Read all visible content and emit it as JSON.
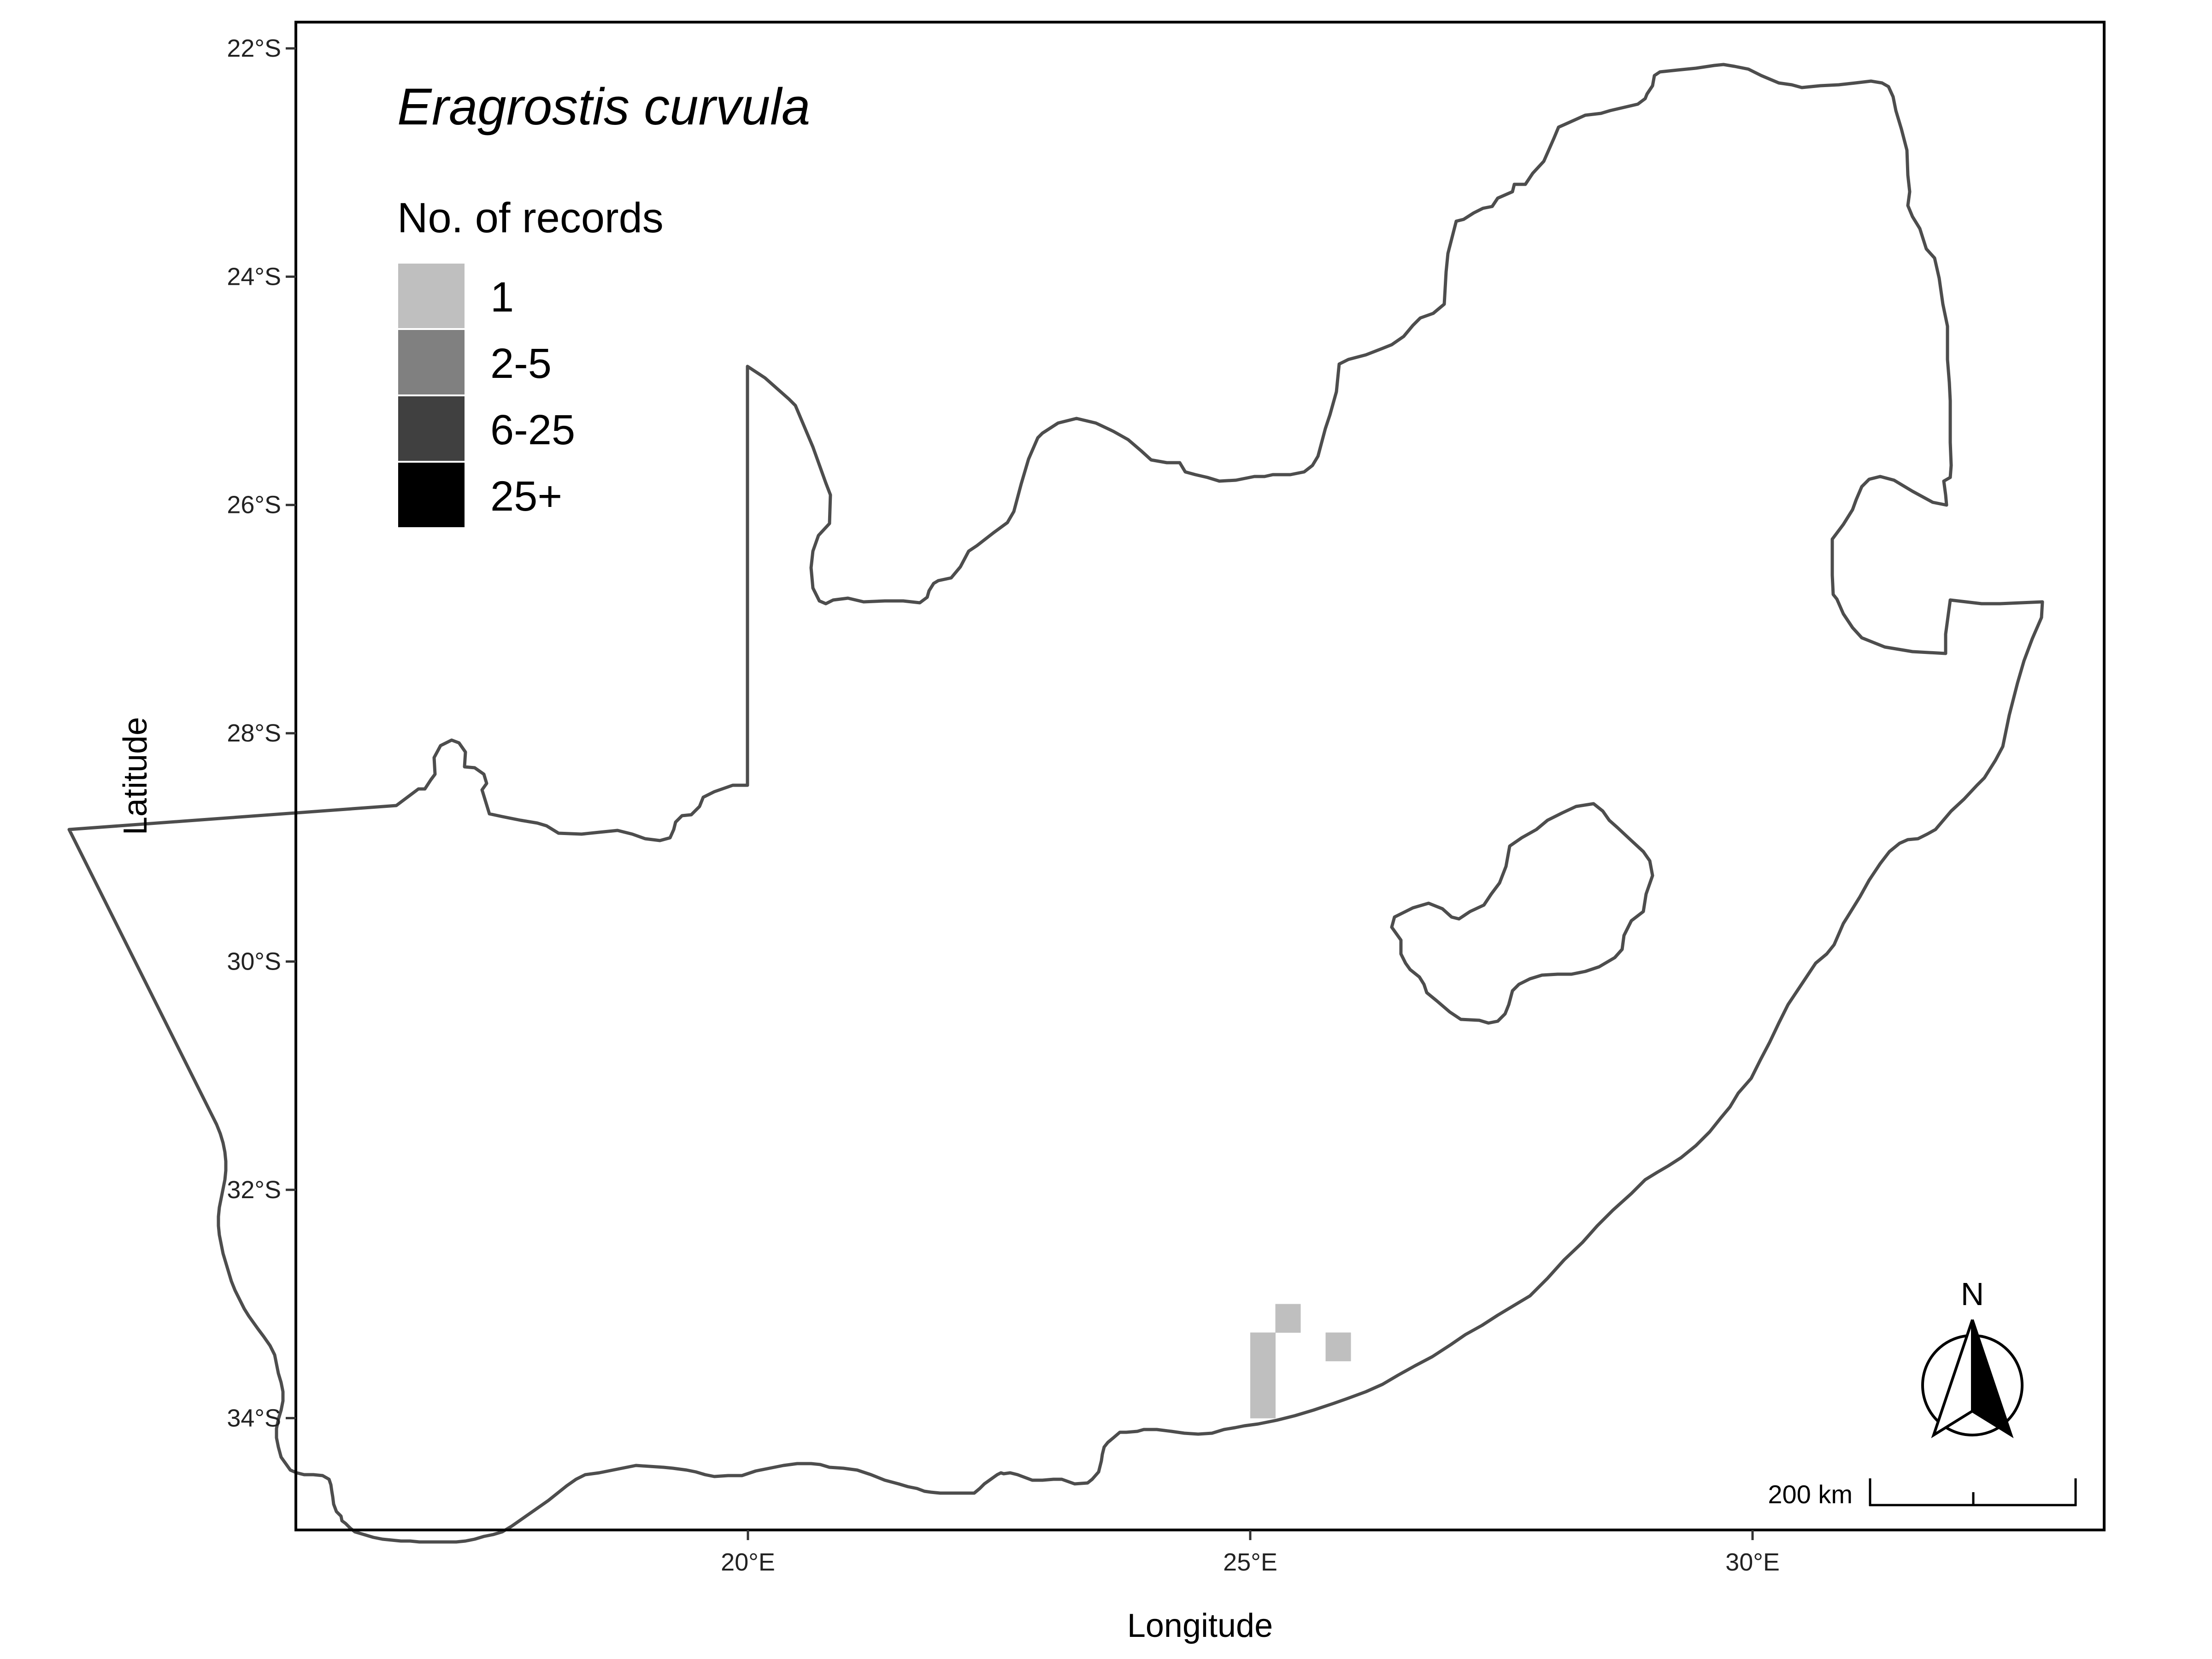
{
  "map": {
    "title": "Eragrostis curvula",
    "x_axis_title": "Longitude",
    "y_axis_title": "Latitude",
    "x_ticks": [
      {
        "lon": 20,
        "label": "20°E"
      },
      {
        "lon": 25,
        "label": "25°E"
      },
      {
        "lon": 30,
        "label": "30°E"
      }
    ],
    "y_ticks": [
      {
        "lat": -22,
        "label": "22°S"
      },
      {
        "lat": -24,
        "label": "24°S"
      },
      {
        "lat": -26,
        "label": "26°S"
      },
      {
        "lat": -28,
        "label": "28°S"
      },
      {
        "lat": -30,
        "label": "30°S"
      },
      {
        "lat": -32,
        "label": "32°S"
      },
      {
        "lat": -34,
        "label": "34°S"
      }
    ],
    "extent": {
      "lon_min": 15.5,
      "lon_max": 33.5,
      "lat_min": -34.98,
      "lat_max": -21.77
    },
    "legend": {
      "title": "No. of records",
      "position": "top-left",
      "items": [
        {
          "label": "1",
          "color": "#bfbfbf"
        },
        {
          "label": "2-5",
          "color": "#808080"
        },
        {
          "label": "6-25",
          "color": "#404040"
        },
        {
          "label": "25+",
          "color": "#000000"
        }
      ]
    },
    "cell_size_deg": 0.25,
    "record_cells": [
      {
        "lon": 25.25,
        "lat": -33.0,
        "class": "1"
      },
      {
        "lon": 25.0,
        "lat": -33.25,
        "class": "1"
      },
      {
        "lon": 25.0,
        "lat": -33.5,
        "class": "1"
      },
      {
        "lon": 25.0,
        "lat": -33.75,
        "class": "1"
      },
      {
        "lon": 25.75,
        "lat": -33.25,
        "class": "1"
      }
    ],
    "scale_bar": {
      "label": "200 km",
      "position": "bottom-right"
    },
    "north_arrow": {
      "label": "N",
      "icon": "north-arrow-icon",
      "position": "bottom-right"
    },
    "outline_color": "#4d4d4d"
  }
}
